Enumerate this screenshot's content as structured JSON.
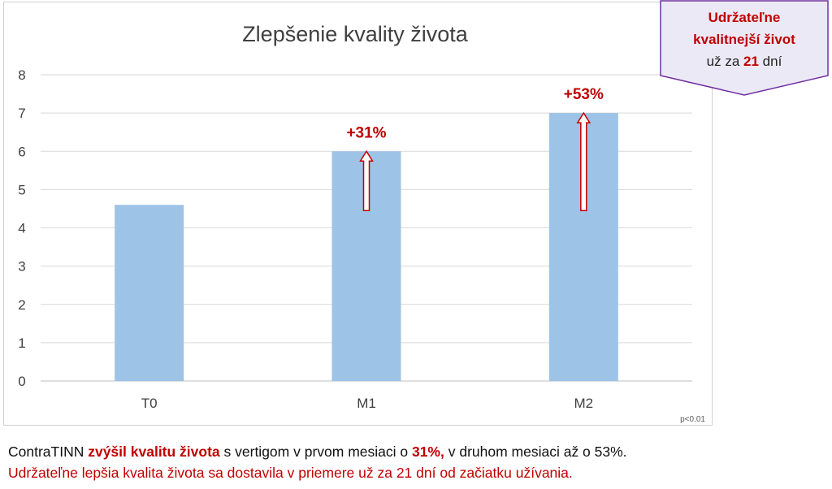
{
  "chart_data": {
    "type": "bar",
    "title": "Zlepšenie kvality života",
    "categories": [
      "T0",
      "M1",
      "M2"
    ],
    "values": [
      4.6,
      6.0,
      7.0
    ],
    "ylim": [
      0,
      8
    ],
    "yticks": [
      0,
      1,
      2,
      3,
      4,
      5,
      6,
      7,
      8
    ],
    "grid": true,
    "bar_color": "#9dc3e6",
    "annotations": [
      {
        "category": "M1",
        "label": "+31%",
        "arrow_from": 4.45,
        "arrow_to": 6.0
      },
      {
        "category": "M2",
        "label": "+53%",
        "arrow_from": 4.45,
        "arrow_to": 7.0
      }
    ],
    "footnote": "p<0.01"
  },
  "callout": {
    "line1": "Udržateľne",
    "line2": "kvalitnejší život",
    "line3_prefix": "už za ",
    "line3_number": "21",
    "line3_suffix": " dní"
  },
  "caption": {
    "part1": "ContraTINN ",
    "part2": "zvýšil kvalitu života",
    "part3": " s vertigom v prvom mesiaci o ",
    "part4": "31%,",
    "part5": " v druhom mesiaci až o 53%.",
    "line2": "Udržateľne lepšia kvalita života sa dostavila v priemere už za 21 dní od začiatku užívania."
  },
  "colors": {
    "accent_red": "#c00000",
    "callout_fill": "#ece9f7",
    "callout_border": "#7030a0"
  }
}
